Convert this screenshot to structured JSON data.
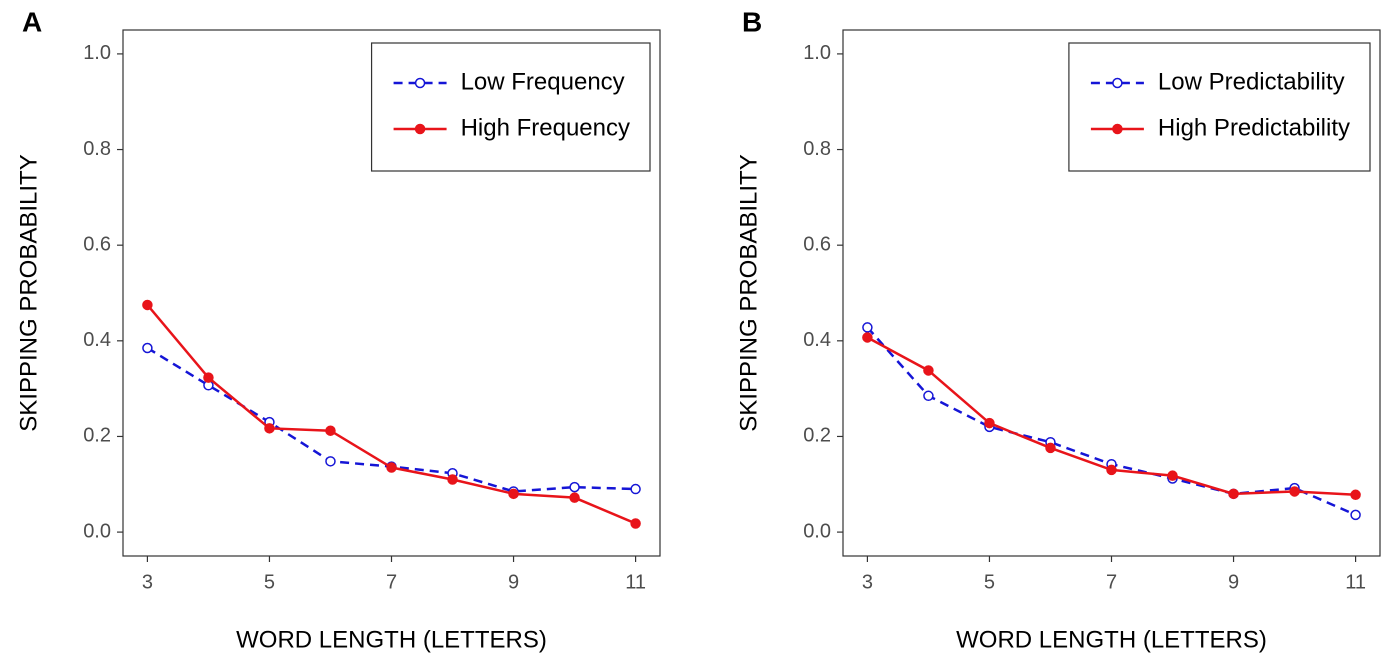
{
  "chart_data": [
    {
      "type": "line",
      "tag": "A",
      "xlabel": "WORD LENGTH (LETTERS)",
      "ylabel": "SKIPPING PROBABILITY",
      "x": [
        3,
        4,
        5,
        6,
        7,
        8,
        9,
        10,
        11
      ],
      "series": [
        {
          "name": "Low Frequency",
          "color": "#1515d6",
          "dashed": true,
          "marker": "open",
          "values": [
            0.385,
            0.307,
            0.23,
            0.148,
            0.137,
            0.123,
            0.085,
            0.094,
            0.09
          ]
        },
        {
          "name": "High Frequency",
          "color": "#e8141a",
          "dashed": false,
          "marker": "filled",
          "values": [
            0.475,
            0.323,
            0.217,
            0.212,
            0.135,
            0.11,
            0.08,
            0.072,
            0.018
          ]
        }
      ],
      "xlim": [
        2.6,
        11.4
      ],
      "ylim": [
        -0.05,
        1.05
      ],
      "xticks": [
        3,
        5,
        7,
        9,
        11
      ],
      "yticks": [
        {
          "value": 0,
          "label": "0.0"
        },
        0.2,
        0.4,
        0.6,
        0.8,
        {
          "value": 1,
          "label": "1.0"
        }
      ],
      "grid": false,
      "legend": "top-right"
    },
    {
      "type": "line",
      "tag": "B",
      "xlabel": "WORD LENGTH (LETTERS)",
      "ylabel": "SKIPPING PROBABILITY",
      "x": [
        3,
        4,
        5,
        6,
        7,
        8,
        9,
        10,
        11
      ],
      "series": [
        {
          "name": "Low Predictability",
          "color": "#1515d6",
          "dashed": true,
          "marker": "open",
          "values": [
            0.428,
            0.285,
            0.22,
            0.188,
            0.142,
            0.112,
            0.08,
            0.092,
            0.036
          ]
        },
        {
          "name": "High Predictability",
          "color": "#e8141a",
          "dashed": false,
          "marker": "filled",
          "values": [
            0.407,
            0.338,
            0.228,
            0.176,
            0.13,
            0.118,
            0.08,
            0.085,
            0.078
          ]
        }
      ],
      "xlim": [
        2.6,
        11.4
      ],
      "ylim": [
        -0.05,
        1.05
      ],
      "xticks": [
        3,
        5,
        7,
        9,
        11
      ],
      "yticks": [
        {
          "value": 0,
          "label": "0.0"
        },
        0.2,
        0.4,
        0.6,
        0.8,
        {
          "value": 1,
          "label": "1.0"
        }
      ],
      "grid": false,
      "legend": "top-right"
    }
  ]
}
